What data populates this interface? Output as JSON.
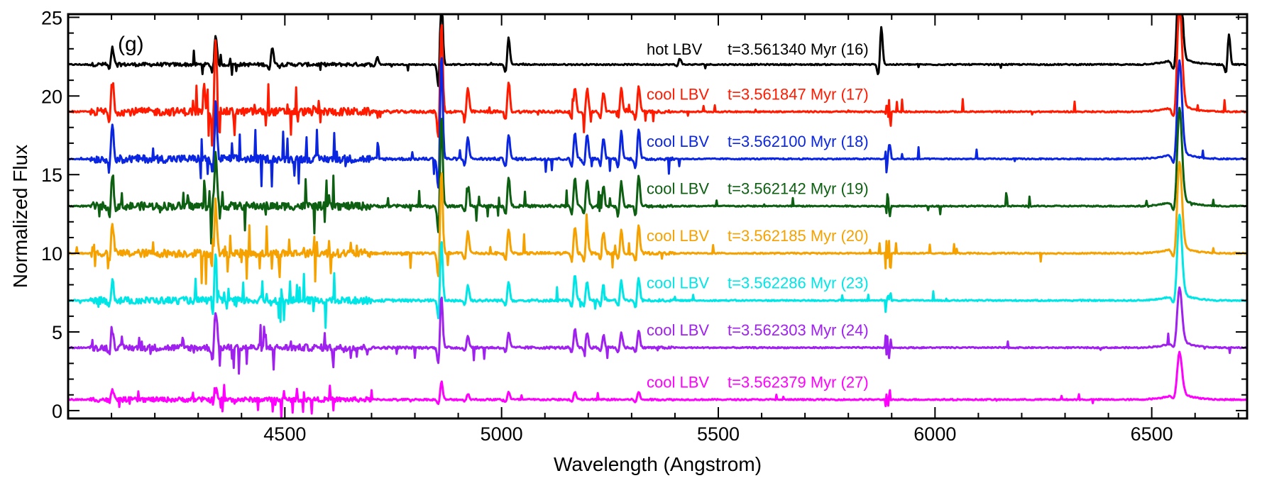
{
  "chart_data": {
    "type": "line",
    "title": "",
    "panel_label": "(g)",
    "xlabel": "Wavelength (Angstrom)",
    "ylabel": "Normalized Flux",
    "xlim": [
      4000,
      6720
    ],
    "ylim": [
      -0.5,
      25.2
    ],
    "xticks": [
      4500,
      5000,
      5500,
      6000,
      6500
    ],
    "xtick_labels": [
      "4500",
      "5000",
      "5500",
      "6000",
      "6500"
    ],
    "yticks": [
      0,
      5,
      10,
      15,
      20,
      25
    ],
    "ytick_labels": [
      "0",
      "5",
      "10",
      "15",
      "20",
      "25"
    ],
    "grid": false,
    "lines": [
      {
        "wavelength": 4102,
        "height": 2.2
      },
      {
        "wavelength": 4340,
        "height": 3.0
      },
      {
        "wavelength": 4861,
        "height": 4.5
      },
      {
        "wavelength": 4922,
        "height": 0.6
      },
      {
        "wavelength": 5016,
        "height": 0.8
      },
      {
        "wavelength": 5876,
        "height": 1.5
      },
      {
        "wavelength": 6563,
        "height": 8.0
      }
    ],
    "series": [
      {
        "name": "hot LBV",
        "label_name": "hot LBV",
        "label_time": "t=3.561340 Myr (16)",
        "continuum": 22,
        "color": "#000000",
        "activity": 0.45,
        "peaks": [
          [
            4102,
            1.1
          ],
          [
            4340,
            2.0
          ],
          [
            4471,
            1.2
          ],
          [
            4713,
            0.5
          ],
          [
            4861,
            5.0
          ],
          [
            5016,
            1.8
          ],
          [
            5411,
            0.4
          ],
          [
            5876,
            2.5
          ],
          [
            6563,
            8.0
          ],
          [
            6678,
            2.0
          ]
        ]
      },
      {
        "name": "cool LBV",
        "label_name": "cool LBV",
        "label_time": "t=3.561847 Myr (17)",
        "continuum": 19,
        "color": "#ff1a00",
        "activity": 1.0,
        "peaks": [
          [
            4102,
            2.5
          ],
          [
            4340,
            5.0
          ],
          [
            4861,
            6.0
          ],
          [
            4922,
            1.5
          ],
          [
            5016,
            2.0
          ],
          [
            5169,
            1.6
          ],
          [
            5197,
            1.5
          ],
          [
            5235,
            1.3
          ],
          [
            5276,
            1.5
          ],
          [
            5316,
            1.7
          ],
          [
            6563,
            8.0
          ]
        ]
      },
      {
        "name": "cool LBV",
        "label_name": "cool LBV",
        "label_time": "t=3.562100 Myr (18)",
        "continuum": 16,
        "color": "#0b26e0",
        "activity": 1.0,
        "peaks": [
          [
            4102,
            2.5
          ],
          [
            4340,
            4.0
          ],
          [
            4861,
            7.0
          ],
          [
            4922,
            1.5
          ],
          [
            5016,
            1.6
          ],
          [
            5169,
            1.8
          ],
          [
            5197,
            1.7
          ],
          [
            5235,
            1.4
          ],
          [
            5276,
            1.8
          ],
          [
            5316,
            2.0
          ],
          [
            6563,
            7.0
          ]
        ]
      },
      {
        "name": "cool LBV",
        "label_name": "cool LBV",
        "label_time": "t=3.562142 Myr (19)",
        "continuum": 13,
        "color": "#0d5f12",
        "activity": 1.0,
        "peaks": [
          [
            4102,
            2.2
          ],
          [
            4340,
            3.5
          ],
          [
            4861,
            6.0
          ],
          [
            4922,
            1.6
          ],
          [
            5016,
            1.9
          ],
          [
            5169,
            1.9
          ],
          [
            5197,
            1.8
          ],
          [
            5235,
            1.3
          ],
          [
            5276,
            1.6
          ],
          [
            5316,
            2.0
          ],
          [
            6563,
            7.0
          ]
        ]
      },
      {
        "name": "cool LBV",
        "label_name": "cool LBV",
        "label_time": "t=3.562185 Myr (20)",
        "continuum": 10,
        "color": "#f5a100",
        "activity": 1.0,
        "peaks": [
          [
            4102,
            2.0
          ],
          [
            4340,
            3.5
          ],
          [
            4861,
            5.5
          ],
          [
            4922,
            1.5
          ],
          [
            5016,
            1.6
          ],
          [
            5169,
            1.8
          ],
          [
            5197,
            1.7
          ],
          [
            5235,
            1.4
          ],
          [
            5276,
            1.6
          ],
          [
            5316,
            1.8
          ],
          [
            6563,
            6.5
          ]
        ]
      },
      {
        "name": "cool LBV",
        "label_name": "cool LBV",
        "label_time": "t=3.562286 Myr (23)",
        "continuum": 7,
        "color": "#00e6e6",
        "activity": 0.9,
        "peaks": [
          [
            4102,
            1.5
          ],
          [
            4340,
            3.0
          ],
          [
            4861,
            4.0
          ],
          [
            4922,
            1.0
          ],
          [
            5016,
            1.3
          ],
          [
            5169,
            1.7
          ],
          [
            5197,
            1.2
          ],
          [
            5235,
            1.1
          ],
          [
            5276,
            1.3
          ],
          [
            5316,
            1.5
          ],
          [
            6563,
            6.0
          ]
        ]
      },
      {
        "name": "cool LBV",
        "label_name": "cool LBV",
        "label_time": "t=3.562303 Myr (24)",
        "continuum": 4,
        "color": "#a020f0",
        "activity": 0.85,
        "peaks": [
          [
            4102,
            1.2
          ],
          [
            4340,
            2.5
          ],
          [
            4861,
            3.5
          ],
          [
            4922,
            0.8
          ],
          [
            5016,
            1.0
          ],
          [
            5169,
            1.2
          ],
          [
            5197,
            1.0
          ],
          [
            5235,
            0.8
          ],
          [
            5276,
            1.0
          ],
          [
            5316,
            1.2
          ],
          [
            6563,
            4.0
          ]
        ]
      },
      {
        "name": "cool LBV",
        "label_name": "cool LBV",
        "label_time": "t=3.562379 Myr (27)",
        "continuum": 0.7,
        "color": "#ff00ff",
        "activity": 0.6,
        "peaks": [
          [
            4102,
            0.6
          ],
          [
            4340,
            0.9
          ],
          [
            4861,
            1.2
          ],
          [
            4922,
            0.4
          ],
          [
            5016,
            0.5
          ],
          [
            5169,
            0.5
          ],
          [
            5316,
            0.5
          ],
          [
            6563,
            3.0
          ]
        ]
      }
    ]
  }
}
